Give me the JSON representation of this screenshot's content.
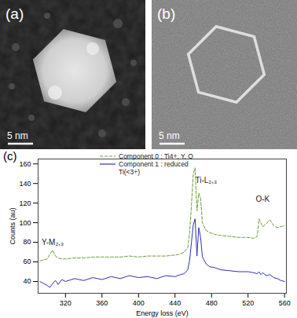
{
  "panels": [
    {
      "label": "(a)",
      "scale_bar": "5 nm"
    },
    {
      "label": "(b)",
      "scale_bar": "5 nm"
    },
    {
      "label": "(c)"
    }
  ],
  "chart_data": {
    "type": "line",
    "x_label": "Energy loss (eV)",
    "y_label": "Counts (au)",
    "xlim": [
      290,
      562
    ],
    "xticks": [
      320,
      360,
      400,
      440,
      480,
      520,
      560
    ],
    "ylim": [
      28,
      165
    ],
    "yticks": [
      40,
      60,
      80,
      100,
      120,
      140,
      160
    ],
    "grid": false,
    "legend": "top",
    "x": [
      292,
      296,
      300,
      303,
      306,
      309,
      312,
      316,
      320,
      330,
      340,
      350,
      360,
      370,
      380,
      390,
      400,
      410,
      420,
      430,
      440,
      446,
      450,
      454,
      456,
      458,
      460,
      462,
      464,
      466,
      468,
      470,
      474,
      478,
      484,
      490,
      500,
      510,
      520,
      526,
      530,
      532,
      534,
      536,
      540,
      544,
      548,
      552,
      556,
      560
    ],
    "series": [
      {
        "name": "Component 0 : Ti4+, Y, O",
        "color": "#6f9e3c",
        "line_style": "dashed",
        "values": [
          61,
          62,
          63,
          68,
          72,
          66,
          64,
          63,
          63,
          64,
          64,
          65,
          65,
          65,
          65,
          66,
          65,
          66,
          66,
          66,
          67,
          68,
          70,
          75,
          90,
          118,
          150,
          156,
          112,
          130,
          125,
          100,
          92,
          90,
          88,
          87,
          86,
          85,
          85,
          84,
          86,
          104,
          100,
          96,
          99,
          103,
          97,
          95,
          96,
          97
        ]
      },
      {
        "name": "Component 1 : reduced\nTi(<3+)",
        "color": "#2f2fb8",
        "line_style": "solid",
        "values": [
          40,
          38,
          36,
          34,
          38,
          41,
          37,
          42,
          40,
          43,
          41,
          44,
          42,
          45,
          43,
          46,
          44,
          45,
          43,
          46,
          45,
          47,
          48,
          52,
          62,
          80,
          98,
          104,
          66,
          95,
          85,
          65,
          58,
          55,
          54,
          52,
          51,
          50,
          50,
          49,
          48,
          50,
          47,
          49,
          46,
          47,
          44,
          43,
          41,
          40
        ]
      }
    ],
    "annotations": [
      {
        "text": "Y-M₂,₃",
        "x": 306,
        "y": 80
      },
      {
        "text": "Ti-L₂,₃",
        "x": 474,
        "y": 143
      },
      {
        "text": "O-K",
        "x": 536,
        "y": 124
      }
    ]
  }
}
